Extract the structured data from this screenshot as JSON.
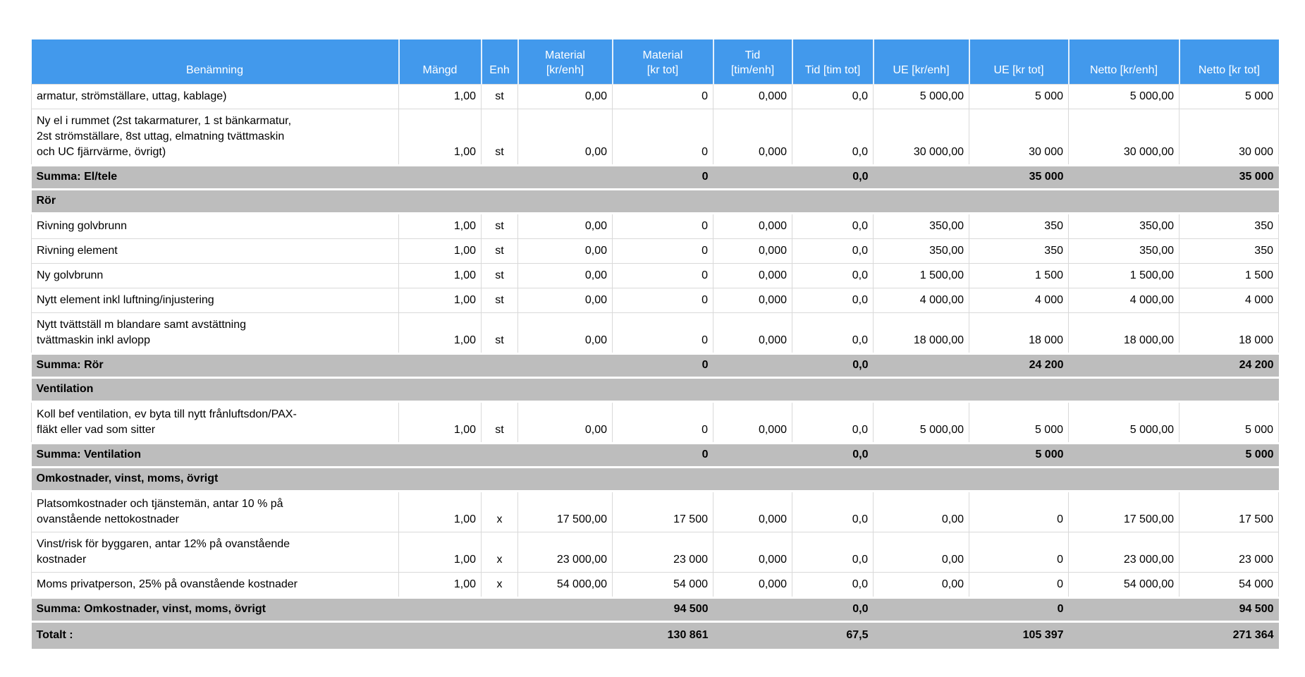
{
  "colors": {
    "header_bg": "#4299ec",
    "summary_bg": "#bdbdbd",
    "header_text": "#ffffff"
  },
  "table": {
    "columns": [
      {
        "key": "name",
        "label": "Benämning"
      },
      {
        "key": "mangd",
        "label": "Mängd"
      },
      {
        "key": "enh",
        "label": "Enh"
      },
      {
        "key": "mat_enh",
        "label": "Material\n[kr/enh]"
      },
      {
        "key": "mat_tot",
        "label": "Material\n[kr tot]"
      },
      {
        "key": "tid_enh",
        "label": "Tid\n[tim/enh]"
      },
      {
        "key": "tid_tot",
        "label": "Tid [tim tot]"
      },
      {
        "key": "ue_enh",
        "label": "UE [kr/enh]"
      },
      {
        "key": "ue_tot",
        "label": "UE [kr tot]"
      },
      {
        "key": "netto_enh",
        "label": "Netto [kr/enh]"
      },
      {
        "key": "netto_tot",
        "label": "Netto [kr tot]"
      }
    ],
    "rows": [
      {
        "type": "item",
        "cells": [
          "armatur, strömställare, uttag, kablage)",
          "1,00",
          "st",
          "0,00",
          "0",
          "0,000",
          "0,0",
          "5 000,00",
          "5 000",
          "5 000,00",
          "5 000"
        ]
      },
      {
        "type": "item",
        "cells": [
          "Ny el i rummet (2st takarmaturer, 1 st bänkarmatur,\n2st strömställare, 8st uttag, elmatning tvättmaskin\noch UC fjärrvärme, övrigt)",
          "1,00",
          "st",
          "0,00",
          "0",
          "0,000",
          "0,0",
          "30 000,00",
          "30 000",
          "30 000,00",
          "30 000"
        ]
      },
      {
        "type": "summa",
        "cells": [
          "Summa: El/tele",
          "",
          "",
          "",
          "0",
          "",
          "0,0",
          "",
          "35 000",
          "",
          "35 000"
        ]
      },
      {
        "type": "section",
        "cells": [
          "Rör",
          "",
          "",
          "",
          "",
          "",
          "",
          "",
          "",
          "",
          ""
        ]
      },
      {
        "type": "item",
        "cells": [
          "Rivning golvbrunn",
          "1,00",
          "st",
          "0,00",
          "0",
          "0,000",
          "0,0",
          "350,00",
          "350",
          "350,00",
          "350"
        ]
      },
      {
        "type": "item",
        "cells": [
          "Rivning element",
          "1,00",
          "st",
          "0,00",
          "0",
          "0,000",
          "0,0",
          "350,00",
          "350",
          "350,00",
          "350"
        ]
      },
      {
        "type": "item",
        "cells": [
          "Ny golvbrunn",
          "1,00",
          "st",
          "0,00",
          "0",
          "0,000",
          "0,0",
          "1 500,00",
          "1 500",
          "1 500,00",
          "1 500"
        ]
      },
      {
        "type": "item",
        "cells": [
          "Nytt element inkl luftning/injustering",
          "1,00",
          "st",
          "0,00",
          "0",
          "0,000",
          "0,0",
          "4 000,00",
          "4 000",
          "4 000,00",
          "4 000"
        ]
      },
      {
        "type": "item",
        "cells": [
          "Nytt tvättställ m blandare samt avstättning\ntvättmaskin inkl avlopp",
          "1,00",
          "st",
          "0,00",
          "0",
          "0,000",
          "0,0",
          "18 000,00",
          "18 000",
          "18 000,00",
          "18 000"
        ]
      },
      {
        "type": "summa",
        "cells": [
          "Summa: Rör",
          "",
          "",
          "",
          "0",
          "",
          "0,0",
          "",
          "24 200",
          "",
          "24 200"
        ]
      },
      {
        "type": "section",
        "cells": [
          "Ventilation",
          "",
          "",
          "",
          "",
          "",
          "",
          "",
          "",
          "",
          ""
        ]
      },
      {
        "type": "item",
        "cells": [
          "Koll bef ventilation, ev byta till nytt frånluftsdon/PAX-\nfläkt eller vad som sitter",
          "1,00",
          "st",
          "0,00",
          "0",
          "0,000",
          "0,0",
          "5 000,00",
          "5 000",
          "5 000,00",
          "5 000"
        ]
      },
      {
        "type": "summa",
        "cells": [
          "Summa: Ventilation",
          "",
          "",
          "",
          "0",
          "",
          "0,0",
          "",
          "5 000",
          "",
          "5 000"
        ]
      },
      {
        "type": "section",
        "cells": [
          "Omkostnader, vinst, moms, övrigt",
          "",
          "",
          "",
          "",
          "",
          "",
          "",
          "",
          "",
          ""
        ]
      },
      {
        "type": "item",
        "cells": [
          "Platsomkostnader och tjänstemän, antar 10 % på\novanstående nettokostnader",
          "1,00",
          "x",
          "17 500,00",
          "17 500",
          "0,000",
          "0,0",
          "0,00",
          "0",
          "17 500,00",
          "17 500"
        ]
      },
      {
        "type": "item",
        "cells": [
          "Vinst/risk för byggaren, antar 12% på ovanstående\nkostnader",
          "1,00",
          "x",
          "23 000,00",
          "23 000",
          "0,000",
          "0,0",
          "0,00",
          "0",
          "23 000,00",
          "23 000"
        ]
      },
      {
        "type": "item",
        "cells": [
          "Moms privatperson, 25% på ovanstående kostnader",
          "1,00",
          "x",
          "54 000,00",
          "54 000",
          "0,000",
          "0,0",
          "0,00",
          "0",
          "54 000,00",
          "54 000"
        ]
      },
      {
        "type": "summa",
        "cells": [
          "Summa: Omkostnader, vinst, moms, övrigt",
          "",
          "",
          "",
          "94 500",
          "",
          "0,0",
          "",
          "0",
          "",
          "94 500"
        ]
      },
      {
        "type": "total",
        "cells": [
          "Totalt :",
          "",
          "",
          "",
          "130 861",
          "",
          "67,5",
          "",
          "105 397",
          "",
          "271 364"
        ]
      }
    ]
  }
}
